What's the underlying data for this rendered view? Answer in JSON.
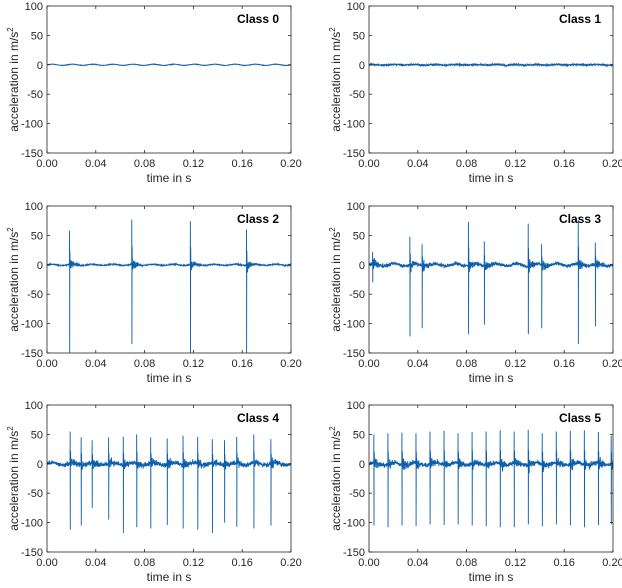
{
  "figure": {
    "line_color": "#0b5fad",
    "axis_color": "#262626"
  },
  "chart_data": [
    {
      "type": "line",
      "title": "Class 0",
      "xlabel": "time in s",
      "ylabel": "acceleration in m/s",
      "ylabel_superscript": "2",
      "xlim": [
        0,
        0.2
      ],
      "ylim": [
        -150,
        100
      ],
      "xticks": [
        "0.00",
        "0.04",
        "0.08",
        "0.12",
        "0.16",
        "0.20"
      ],
      "yticks": [
        "100",
        "50",
        "0",
        "-50",
        "-100",
        "-150"
      ],
      "series": [
        {
          "name": "acceleration",
          "signal": {
            "amplitude": 1,
            "noise": 0.3,
            "spike_times": [],
            "spike_min": [],
            "spike_max": [],
            "burst_noise": 0
          }
        }
      ]
    },
    {
      "type": "line",
      "title": "Class 1",
      "xlabel": "time in s",
      "ylabel": "acceleration in m/s",
      "ylabel_superscript": "2",
      "xlim": [
        0,
        0.2
      ],
      "ylim": [
        -150,
        100
      ],
      "xticks": [
        "0.00",
        "0.04",
        "0.08",
        "0.12",
        "0.16",
        "0.20"
      ],
      "yticks": [
        "100",
        "50",
        "0",
        "-50",
        "-100",
        "-150"
      ],
      "series": [
        {
          "name": "acceleration",
          "signal": {
            "amplitude": 0.5,
            "noise": 1.3,
            "spike_times": [],
            "spike_min": [],
            "spike_max": [],
            "burst_noise": 0
          }
        }
      ]
    },
    {
      "type": "line",
      "title": "Class 2",
      "xlabel": "time in s",
      "ylabel": "acceleration in m/s",
      "ylabel_superscript": "2",
      "xlim": [
        0,
        0.2
      ],
      "ylim": [
        -150,
        100
      ],
      "xticks": [
        "0.00",
        "0.04",
        "0.08",
        "0.12",
        "0.16",
        "0.20"
      ],
      "yticks": [
        "100",
        "50",
        "0",
        "-50",
        "-100",
        "-150"
      ],
      "series": [
        {
          "name": "acceleration",
          "signal": {
            "amplitude": 1,
            "noise": 0.8,
            "spike_times": [
              0.0185,
              0.0695,
              0.1175,
              0.1635
            ],
            "spike_min": [
              -150,
              -135,
              -150,
              -150
            ],
            "spike_max": [
              58,
              77,
              74,
              60
            ],
            "burst_noise": 9
          }
        }
      ]
    },
    {
      "type": "line",
      "title": "Class 3",
      "xlabel": "time in s",
      "ylabel": "acceleration in m/s",
      "ylabel_superscript": "2",
      "xlim": [
        0,
        0.2
      ],
      "ylim": [
        -150,
        100
      ],
      "xticks": [
        "0.00",
        "0.04",
        "0.08",
        "0.12",
        "0.16",
        "0.20"
      ],
      "yticks": [
        "100",
        "50",
        "0",
        "-50",
        "-100",
        "-150"
      ],
      "series": [
        {
          "name": "acceleration",
          "signal": {
            "amplitude": 2,
            "noise": 2.5,
            "spike_times": [
              0.003,
              0.0335,
              0.0435,
              0.0815,
              0.0945,
              0.1305,
              0.1415,
              0.1715,
              0.1855
            ],
            "spike_min": [
              -30,
              -122,
              -108,
              -118,
              -102,
              -118,
              -108,
              -135,
              -105
            ],
            "spike_max": [
              22,
              48,
              35,
              73,
              40,
              70,
              35,
              76,
              38
            ],
            "burst_noise": 8
          }
        }
      ]
    },
    {
      "type": "line",
      "title": "Class 4",
      "xlabel": "time in s",
      "ylabel": "acceleration in m/s",
      "ylabel_superscript": "2",
      "xlim": [
        0,
        0.2
      ],
      "ylim": [
        -150,
        100
      ],
      "xticks": [
        "0.00",
        "0.04",
        "0.08",
        "0.12",
        "0.16",
        "0.20"
      ],
      "yticks": [
        "100",
        "50",
        "0",
        "-50",
        "-100",
        "-150"
      ],
      "series": [
        {
          "name": "acceleration",
          "signal": {
            "amplitude": 2,
            "noise": 3,
            "spike_times": [
              0.019,
              0.028,
              0.037,
              0.0505,
              0.0625,
              0.0735,
              0.085,
              0.0985,
              0.1115,
              0.1235,
              0.1355,
              0.1455,
              0.1555,
              0.1695,
              0.1835
            ],
            "spike_min": [
              -112,
              -105,
              -75,
              -95,
              -118,
              -108,
              -110,
              -104,
              -110,
              -112,
              -118,
              -100,
              -107,
              -110,
              -105
            ],
            "spike_max": [
              55,
              45,
              40,
              45,
              46,
              50,
              45,
              43,
              48,
              46,
              42,
              40,
              46,
              50,
              42
            ],
            "burst_noise": 8
          }
        }
      ]
    },
    {
      "type": "line",
      "title": "Class 5",
      "xlabel": "time in s",
      "ylabel": "acceleration in m/s",
      "ylabel_superscript": "2",
      "xlim": [
        0,
        0.2
      ],
      "ylim": [
        -150,
        100
      ],
      "xticks": [
        "0.00",
        "0.04",
        "0.08",
        "0.12",
        "0.16",
        "0.20"
      ],
      "yticks": [
        "100",
        "50",
        "0",
        "-50",
        "-100",
        "-150"
      ],
      "series": [
        {
          "name": "acceleration",
          "signal": {
            "amplitude": 2,
            "noise": 3,
            "spike_times": [
              0.004,
              0.0155,
              0.027,
              0.0385,
              0.05,
              0.0615,
              0.073,
              0.0845,
              0.096,
              0.1075,
              0.119,
              0.1305,
              0.142,
              0.1535,
              0.165,
              0.1765,
              0.188,
              0.1985
            ],
            "spike_min": [
              -105,
              -108,
              -105,
              -106,
              -103,
              -104,
              -103,
              -105,
              -106,
              -108,
              -108,
              -103,
              -106,
              -103,
              -105,
              -108,
              -104,
              -103
            ],
            "spike_max": [
              50,
              52,
              53,
              52,
              55,
              56,
              52,
              54,
              55,
              57,
              55,
              58,
              52,
              55,
              56,
              57,
              54,
              48
            ],
            "burst_noise": 9
          }
        }
      ]
    }
  ]
}
